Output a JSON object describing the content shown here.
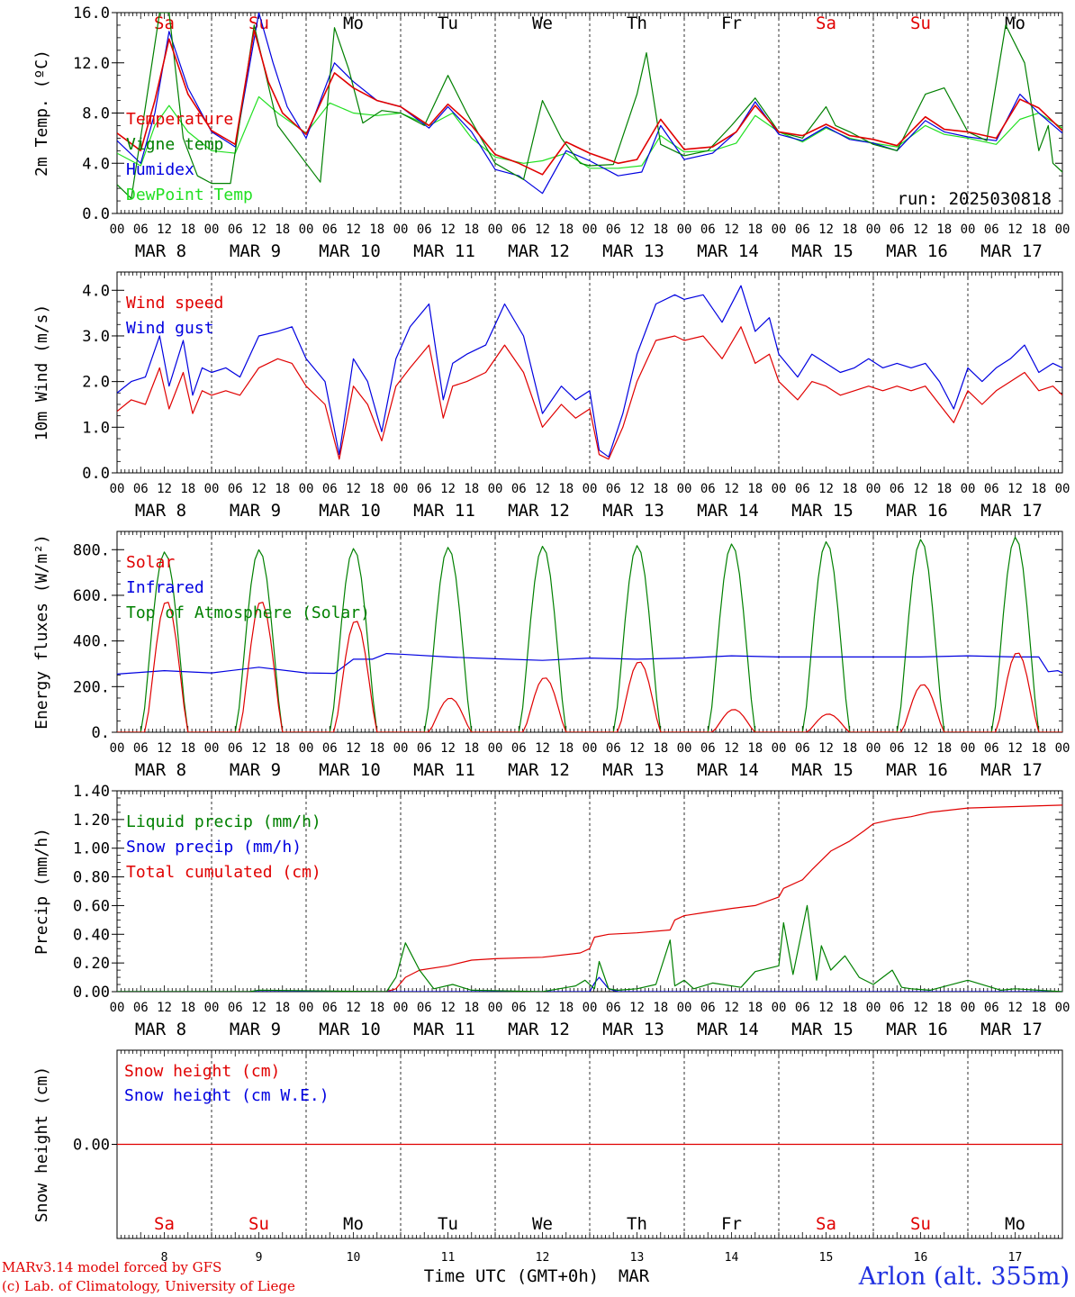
{
  "footer": {
    "credit_line1": "MARv3.14 model forced by GFS",
    "credit_line2": "(c) Lab. of Climatology, University of Liege",
    "xlabel": "Time UTC (GMT+0h)",
    "month": "MAR",
    "station": "Arlon (alt. 355m)",
    "run": "run: 2025030818"
  },
  "axis_common": {
    "hour_ticks": [
      "00",
      "06",
      "12",
      "18"
    ],
    "final_tick": "00",
    "date_labels": [
      "MAR  8",
      "MAR  9",
      "MAR 10",
      "MAR 11",
      "MAR 12",
      "MAR 13",
      "MAR 14",
      "MAR 15",
      "MAR 16",
      "MAR 17"
    ],
    "day_names": [
      "Sa",
      "Su",
      "Mo",
      "Tu",
      "We",
      "Th",
      "Fr",
      "Sa",
      "Su",
      "Mo"
    ],
    "day_numbers": [
      "8",
      "9",
      "10",
      "11",
      "12",
      "13",
      "14",
      "15",
      "16",
      "17"
    ],
    "day_name_colors": [
      "#e00000",
      "#e00000",
      "#000000",
      "#000000",
      "#000000",
      "#000000",
      "#000000",
      "#e00000",
      "#e00000",
      "#000000"
    ]
  },
  "chart_data": [
    {
      "type": "line",
      "id": "temp",
      "ylabel": "2m Temp. (ºC)",
      "ylim": [
        0,
        16
      ],
      "yticks": [
        "0.0",
        "4.0",
        "8.0",
        "12.0",
        "16.0"
      ],
      "x_unit": "days from MAR 8 00 UTC",
      "x_range": [
        0,
        10
      ],
      "legend_placement": "left",
      "series": [
        {
          "name": "Temperature",
          "color": "#e00000",
          "x": [
            0,
            0.25,
            0.4,
            0.55,
            0.75,
            1,
            1.25,
            1.45,
            1.6,
            1.75,
            2,
            2.3,
            2.5,
            2.75,
            3,
            3.3,
            3.5,
            3.75,
            4,
            4.25,
            4.5,
            4.75,
            5,
            5.3,
            5.5,
            5.75,
            6,
            6.3,
            6.55,
            6.75,
            7,
            7.25,
            7.5,
            7.75,
            8,
            8.25,
            8.55,
            8.75,
            9,
            9.3,
            9.55,
            9.75,
            10
          ],
          "values": [
            6.4,
            5.0,
            9.0,
            13.9,
            9.5,
            6.6,
            5.5,
            14.6,
            10.5,
            8.0,
            6.3,
            11.2,
            10.0,
            9.0,
            8.5,
            7.0,
            8.7,
            7.0,
            4.7,
            4.0,
            3.1,
            5.7,
            4.8,
            4.0,
            4.3,
            7.5,
            5.1,
            5.3,
            6.5,
            8.6,
            6.5,
            6.2,
            7.1,
            6.2,
            5.9,
            5.4,
            7.7,
            6.7,
            6.5,
            6.0,
            9.1,
            8.4,
            6.6
          ]
        },
        {
          "name": "Vigne temp",
          "color": "#008000",
          "x": [
            0,
            0.15,
            0.3,
            0.45,
            0.55,
            0.7,
            0.85,
            1,
            1.2,
            1.45,
            1.7,
            2,
            2.15,
            2.3,
            2.45,
            2.6,
            2.8,
            3,
            3.25,
            3.5,
            3.7,
            4,
            4.3,
            4.5,
            4.7,
            4.9,
            5,
            5.25,
            5.5,
            5.6,
            5.75,
            6,
            6.25,
            6.5,
            6.75,
            7,
            7.25,
            7.5,
            7.6,
            7.75,
            8,
            8.25,
            8.55,
            8.75,
            9,
            9.2,
            9.4,
            9.6,
            9.75,
            9.85,
            9.9,
            10
          ],
          "values": [
            2.3,
            1.2,
            8.5,
            16.0,
            16.0,
            6.0,
            3.0,
            2.4,
            2.4,
            15.0,
            7.0,
            4.0,
            2.5,
            14.8,
            11.5,
            7.2,
            8.2,
            8.0,
            7.0,
            11.0,
            8.0,
            4.0,
            2.7,
            9.0,
            6.0,
            4.0,
            3.8,
            3.9,
            9.5,
            12.8,
            5.5,
            4.6,
            5.0,
            7.0,
            9.2,
            6.5,
            6.0,
            8.5,
            7.0,
            6.5,
            5.5,
            5.0,
            9.5,
            10.0,
            6.5,
            5.8,
            15.0,
            12.0,
            5.0,
            7.0,
            4.0,
            3.3
          ]
        },
        {
          "name": "Humidex",
          "color": "#0000e0",
          "x": [
            0,
            0.25,
            0.4,
            0.55,
            0.75,
            1,
            1.25,
            1.5,
            1.65,
            1.8,
            2,
            2.3,
            2.5,
            2.75,
            3,
            3.3,
            3.5,
            3.75,
            4,
            4.25,
            4.5,
            4.75,
            5,
            5.3,
            5.55,
            5.75,
            6,
            6.3,
            6.55,
            6.75,
            7,
            7.25,
            7.5,
            7.75,
            8,
            8.25,
            8.55,
            8.75,
            9,
            9.3,
            9.55,
            9.75,
            10
          ],
          "values": [
            5.8,
            4.0,
            8.0,
            14.5,
            10.0,
            6.5,
            5.3,
            16.0,
            12.0,
            8.5,
            6.0,
            12.0,
            10.5,
            9.0,
            8.5,
            6.8,
            8.5,
            6.5,
            3.5,
            3.0,
            1.6,
            5.0,
            4.2,
            3.0,
            3.3,
            7.0,
            4.3,
            4.8,
            6.5,
            8.9,
            6.3,
            5.8,
            6.9,
            5.9,
            5.6,
            5.0,
            7.4,
            6.5,
            6.1,
            5.8,
            9.5,
            8.0,
            6.4
          ]
        },
        {
          "name": "DewPoint Temp",
          "color": "#22e022",
          "x": [
            0,
            0.25,
            0.4,
            0.55,
            0.75,
            1,
            1.25,
            1.5,
            1.7,
            2,
            2.25,
            2.5,
            2.75,
            3,
            3.3,
            3.55,
            3.75,
            4,
            4.3,
            4.5,
            4.75,
            5,
            5.3,
            5.55,
            5.75,
            6,
            6.3,
            6.55,
            6.75,
            7,
            7.25,
            7.5,
            7.75,
            8,
            8.25,
            8.55,
            8.75,
            9,
            9.3,
            9.55,
            9.75,
            10
          ],
          "values": [
            4.8,
            3.8,
            7.0,
            8.6,
            6.5,
            5.0,
            4.8,
            9.3,
            8.0,
            6.4,
            8.8,
            8.0,
            7.8,
            8.0,
            7.0,
            8.0,
            6.0,
            4.5,
            4.0,
            4.2,
            4.8,
            3.6,
            3.6,
            3.8,
            6.2,
            4.9,
            5.0,
            5.6,
            7.8,
            6.5,
            5.7,
            6.8,
            6.0,
            5.6,
            5.3,
            7.0,
            6.3,
            6.0,
            5.5,
            7.5,
            8.0,
            6.8
          ]
        }
      ]
    },
    {
      "type": "line",
      "id": "wind",
      "ylabel": "10m Wind (m/s)",
      "ylim": [
        0,
        4.4
      ],
      "yticks": [
        "0.0",
        "1.0",
        "2.0",
        "3.0",
        "4.0"
      ],
      "x_unit": "days from MAR 8 00 UTC",
      "x_range": [
        0,
        10
      ],
      "legend_placement": "left",
      "series": [
        {
          "name": "Wind speed",
          "color": "#e00000",
          "x": [
            0,
            0.15,
            0.3,
            0.45,
            0.55,
            0.7,
            0.8,
            0.9,
            1,
            1.15,
            1.3,
            1.5,
            1.7,
            1.85,
            2,
            2.2,
            2.35,
            2.5,
            2.65,
            2.8,
            2.95,
            3.1,
            3.3,
            3.45,
            3.55,
            3.7,
            3.9,
            4.1,
            4.3,
            4.5,
            4.7,
            4.85,
            5,
            5.1,
            5.2,
            5.35,
            5.5,
            5.7,
            5.9,
            6,
            6.2,
            6.4,
            6.6,
            6.75,
            6.9,
            7,
            7.2,
            7.35,
            7.5,
            7.65,
            7.8,
            7.95,
            8.1,
            8.25,
            8.4,
            8.55,
            8.7,
            8.85,
            9,
            9.15,
            9.3,
            9.45,
            9.6,
            9.75,
            9.9,
            10
          ],
          "values": [
            1.35,
            1.6,
            1.5,
            2.3,
            1.4,
            2.2,
            1.3,
            1.8,
            1.7,
            1.8,
            1.7,
            2.3,
            2.5,
            2.4,
            1.9,
            1.5,
            0.3,
            1.9,
            1.5,
            0.7,
            1.9,
            2.3,
            2.8,
            1.2,
            1.9,
            2.0,
            2.2,
            2.8,
            2.2,
            1.0,
            1.5,
            1.2,
            1.4,
            0.4,
            0.3,
            1.0,
            2.0,
            2.9,
            3.0,
            2.9,
            3.0,
            2.5,
            3.2,
            2.4,
            2.6,
            2.0,
            1.6,
            2.0,
            1.9,
            1.7,
            1.8,
            1.9,
            1.8,
            1.9,
            1.8,
            1.9,
            1.5,
            1.1,
            1.8,
            1.5,
            1.8,
            2.0,
            2.2,
            1.8,
            1.9,
            1.7
          ]
        },
        {
          "name": "Wind gust",
          "color": "#0000e0",
          "x": [
            0,
            0.15,
            0.3,
            0.45,
            0.55,
            0.7,
            0.8,
            0.9,
            1,
            1.15,
            1.3,
            1.5,
            1.7,
            1.85,
            2,
            2.2,
            2.35,
            2.5,
            2.65,
            2.8,
            2.95,
            3.1,
            3.3,
            3.45,
            3.55,
            3.7,
            3.9,
            4.1,
            4.3,
            4.5,
            4.7,
            4.85,
            5,
            5.1,
            5.2,
            5.35,
            5.5,
            5.7,
            5.9,
            6,
            6.2,
            6.4,
            6.6,
            6.75,
            6.9,
            7,
            7.2,
            7.35,
            7.5,
            7.65,
            7.8,
            7.95,
            8.1,
            8.25,
            8.4,
            8.55,
            8.7,
            8.85,
            9,
            9.15,
            9.3,
            9.45,
            9.6,
            9.75,
            9.9,
            10
          ],
          "values": [
            1.75,
            2.0,
            2.1,
            3.0,
            1.9,
            2.9,
            1.7,
            2.3,
            2.2,
            2.3,
            2.1,
            3.0,
            3.1,
            3.2,
            2.5,
            2.0,
            0.4,
            2.5,
            2.0,
            0.9,
            2.5,
            3.2,
            3.7,
            1.6,
            2.4,
            2.6,
            2.8,
            3.7,
            3.0,
            1.3,
            1.9,
            1.6,
            1.8,
            0.5,
            0.35,
            1.3,
            2.6,
            3.7,
            3.9,
            3.8,
            3.9,
            3.3,
            4.1,
            3.1,
            3.4,
            2.6,
            2.1,
            2.6,
            2.4,
            2.2,
            2.3,
            2.5,
            2.3,
            2.4,
            2.3,
            2.4,
            2.0,
            1.4,
            2.3,
            2.0,
            2.3,
            2.5,
            2.8,
            2.2,
            2.4,
            2.3
          ]
        }
      ]
    },
    {
      "type": "line",
      "id": "energy",
      "ylabel": "Energy fluxes (W/m²)",
      "ylim": [
        0,
        880
      ],
      "yticks": [
        "0.",
        "200.",
        "400.",
        "600.",
        "800."
      ],
      "x_unit": "days from MAR 8 00 UTC",
      "x_range": [
        0,
        10
      ],
      "legend_placement": "left",
      "series": [
        {
          "name": "Solar",
          "color": "#e00000",
          "type": "daily_peak",
          "peaks": [
            575,
            575,
            490,
            150,
            240,
            310,
            100,
            80,
            210,
            350
          ]
        },
        {
          "name": "Infrared",
          "color": "#0000e0",
          "x": [
            0,
            0.5,
            1,
            1.5,
            2,
            2.3,
            2.5,
            2.7,
            2.85,
            3,
            3.5,
            4,
            4.5,
            5,
            5.5,
            6,
            6.5,
            7,
            7.5,
            8,
            8.5,
            9,
            9.5,
            9.75,
            9.85,
            9.95,
            10
          ],
          "values": [
            255,
            270,
            260,
            285,
            260,
            258,
            320,
            320,
            345,
            342,
            330,
            322,
            315,
            325,
            320,
            325,
            335,
            330,
            330,
            330,
            330,
            335,
            330,
            330,
            265,
            270,
            260
          ]
        },
        {
          "name": "Top of Atmosphere (Solar)",
          "color": "#008000",
          "type": "daily_peak",
          "peaks": [
            790,
            800,
            805,
            810,
            815,
            818,
            825,
            835,
            845,
            855
          ]
        }
      ]
    },
    {
      "type": "line",
      "id": "precip",
      "ylabel": "Precip (mm/h)",
      "ylim": [
        0,
        1.4
      ],
      "yticks": [
        "0.00",
        "0.20",
        "0.40",
        "0.60",
        "0.80",
        "1.00",
        "1.20",
        "1.40"
      ],
      "x_unit": "days from MAR 8 00 UTC",
      "x_range": [
        0,
        10
      ],
      "legend_placement": "left",
      "series": [
        {
          "name": "Liquid precip (mm/h)",
          "color": "#008000",
          "x": [
            0,
            1.4,
            1.5,
            2.85,
            2.95,
            3.05,
            3.2,
            3.35,
            3.55,
            3.75,
            4.5,
            4.85,
            4.95,
            5.05,
            5.1,
            5.2,
            5.3,
            5.5,
            5.7,
            5.85,
            5.9,
            6.0,
            6.1,
            6.3,
            6.6,
            6.75,
            7.0,
            7.05,
            7.15,
            7.3,
            7.4,
            7.45,
            7.55,
            7.7,
            7.85,
            8.0,
            8.2,
            8.3,
            8.4,
            8.6,
            9.0,
            9.35,
            9.5,
            10
          ],
          "values": [
            0,
            0,
            0.01,
            0,
            0.1,
            0.34,
            0.15,
            0.02,
            0.05,
            0.01,
            0,
            0.04,
            0.08,
            0.02,
            0.21,
            0.02,
            0.01,
            0.02,
            0.05,
            0.36,
            0.04,
            0.08,
            0.02,
            0.06,
            0.03,
            0.14,
            0.18,
            0.48,
            0.12,
            0.6,
            0.08,
            0.32,
            0.15,
            0.25,
            0.1,
            0.05,
            0.15,
            0.03,
            0.02,
            0.01,
            0.08,
            0.01,
            0.02,
            0.0
          ]
        },
        {
          "name": "Snow precip (mm/h)",
          "color": "#0000e0",
          "x": [
            0,
            5.0,
            5.05,
            5.1,
            5.2,
            5.3,
            10
          ],
          "values": [
            0,
            0,
            0.06,
            0.1,
            0.02,
            0,
            0
          ]
        },
        {
          "name": "Total cumulated (cm)",
          "color": "#e00000",
          "x": [
            0,
            2.85,
            2.95,
            3.05,
            3.2,
            3.5,
            3.75,
            4,
            4.5,
            4.9,
            5.0,
            5.05,
            5.2,
            5.5,
            5.85,
            5.9,
            6.0,
            6.2,
            6.5,
            6.75,
            7.0,
            7.05,
            7.25,
            7.35,
            7.55,
            7.75,
            7.9,
            8.0,
            8.2,
            8.4,
            8.6,
            9.0,
            9.5,
            10
          ],
          "values": [
            0,
            0,
            0.02,
            0.1,
            0.15,
            0.18,
            0.22,
            0.23,
            0.24,
            0.27,
            0.3,
            0.38,
            0.4,
            0.41,
            0.43,
            0.5,
            0.53,
            0.55,
            0.58,
            0.6,
            0.66,
            0.72,
            0.78,
            0.85,
            0.98,
            1.05,
            1.12,
            1.17,
            1.2,
            1.22,
            1.25,
            1.28,
            1.29,
            1.3
          ]
        }
      ]
    },
    {
      "type": "line",
      "id": "snow",
      "ylabel": "Snow height (cm)",
      "ylim": [
        -1,
        1
      ],
      "yticks": [
        "0.00"
      ],
      "x_unit": "days from MAR 8 00 UTC",
      "x_range": [
        0,
        10
      ],
      "legend_placement": "left",
      "series": [
        {
          "name": "Snow height (cm)",
          "color": "#e00000",
          "x": [
            0,
            10
          ],
          "values": [
            0,
            0
          ]
        },
        {
          "name": "Snow height (cm W.E.)",
          "color": "#0000e0",
          "x": [],
          "values": []
        }
      ]
    }
  ]
}
